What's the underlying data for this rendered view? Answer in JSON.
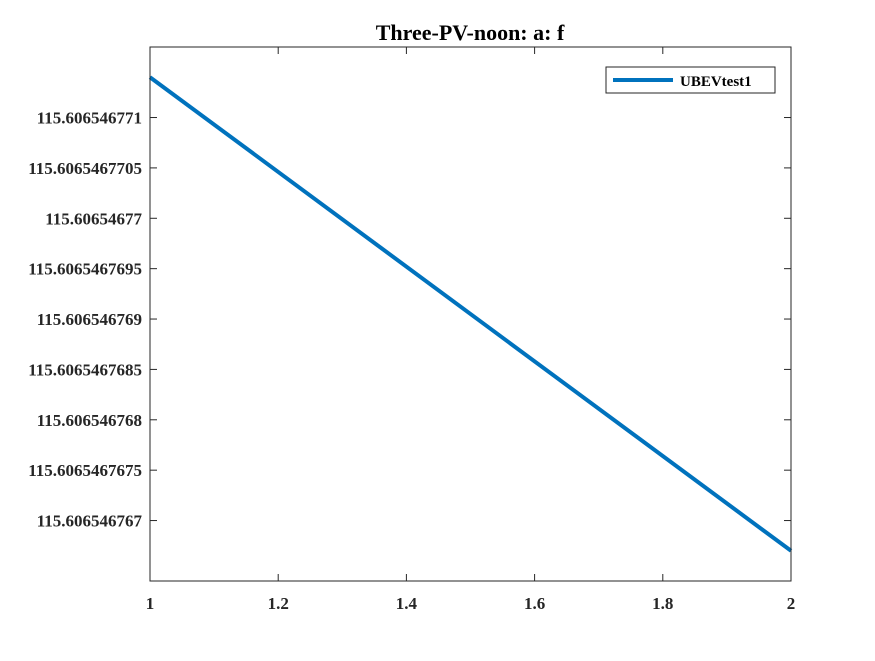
{
  "chart_data": {
    "type": "line",
    "title": "Three-PV-noon: a: f",
    "xlabel": "",
    "ylabel": "",
    "xlim": [
      1,
      2
    ],
    "ylim": [
      115.6065467664,
      115.6065467717
    ],
    "x_ticks": [
      {
        "value": 1,
        "label": "1"
      },
      {
        "value": 1.2,
        "label": "1.2"
      },
      {
        "value": 1.4,
        "label": "1.4"
      },
      {
        "value": 1.6,
        "label": "1.6"
      },
      {
        "value": 1.8,
        "label": "1.8"
      },
      {
        "value": 2,
        "label": "2"
      }
    ],
    "y_ticks": [
      {
        "value": 115.606546767,
        "label": "115.606546767"
      },
      {
        "value": 115.6065467675,
        "label": "115.6065467675"
      },
      {
        "value": 115.606546768,
        "label": "115.606546768"
      },
      {
        "value": 115.6065467685,
        "label": "115.6065467685"
      },
      {
        "value": 115.606546769,
        "label": "115.606546769"
      },
      {
        "value": 115.6065467695,
        "label": "115.6065467695"
      },
      {
        "value": 115.60654677,
        "label": "115.60654677"
      },
      {
        "value": 115.6065467705,
        "label": "115.6065467705"
      },
      {
        "value": 115.606546771,
        "label": "115.606546771"
      }
    ],
    "series": [
      {
        "name": "UBEVtest1",
        "color": "#0072BD",
        "x": [
          1,
          2
        ],
        "y": [
          115.6065467714,
          115.6065467667
        ]
      }
    ],
    "legend": {
      "placement": "top-right",
      "entries": [
        "UBEVtest1"
      ]
    },
    "grid": false,
    "box": true
  }
}
